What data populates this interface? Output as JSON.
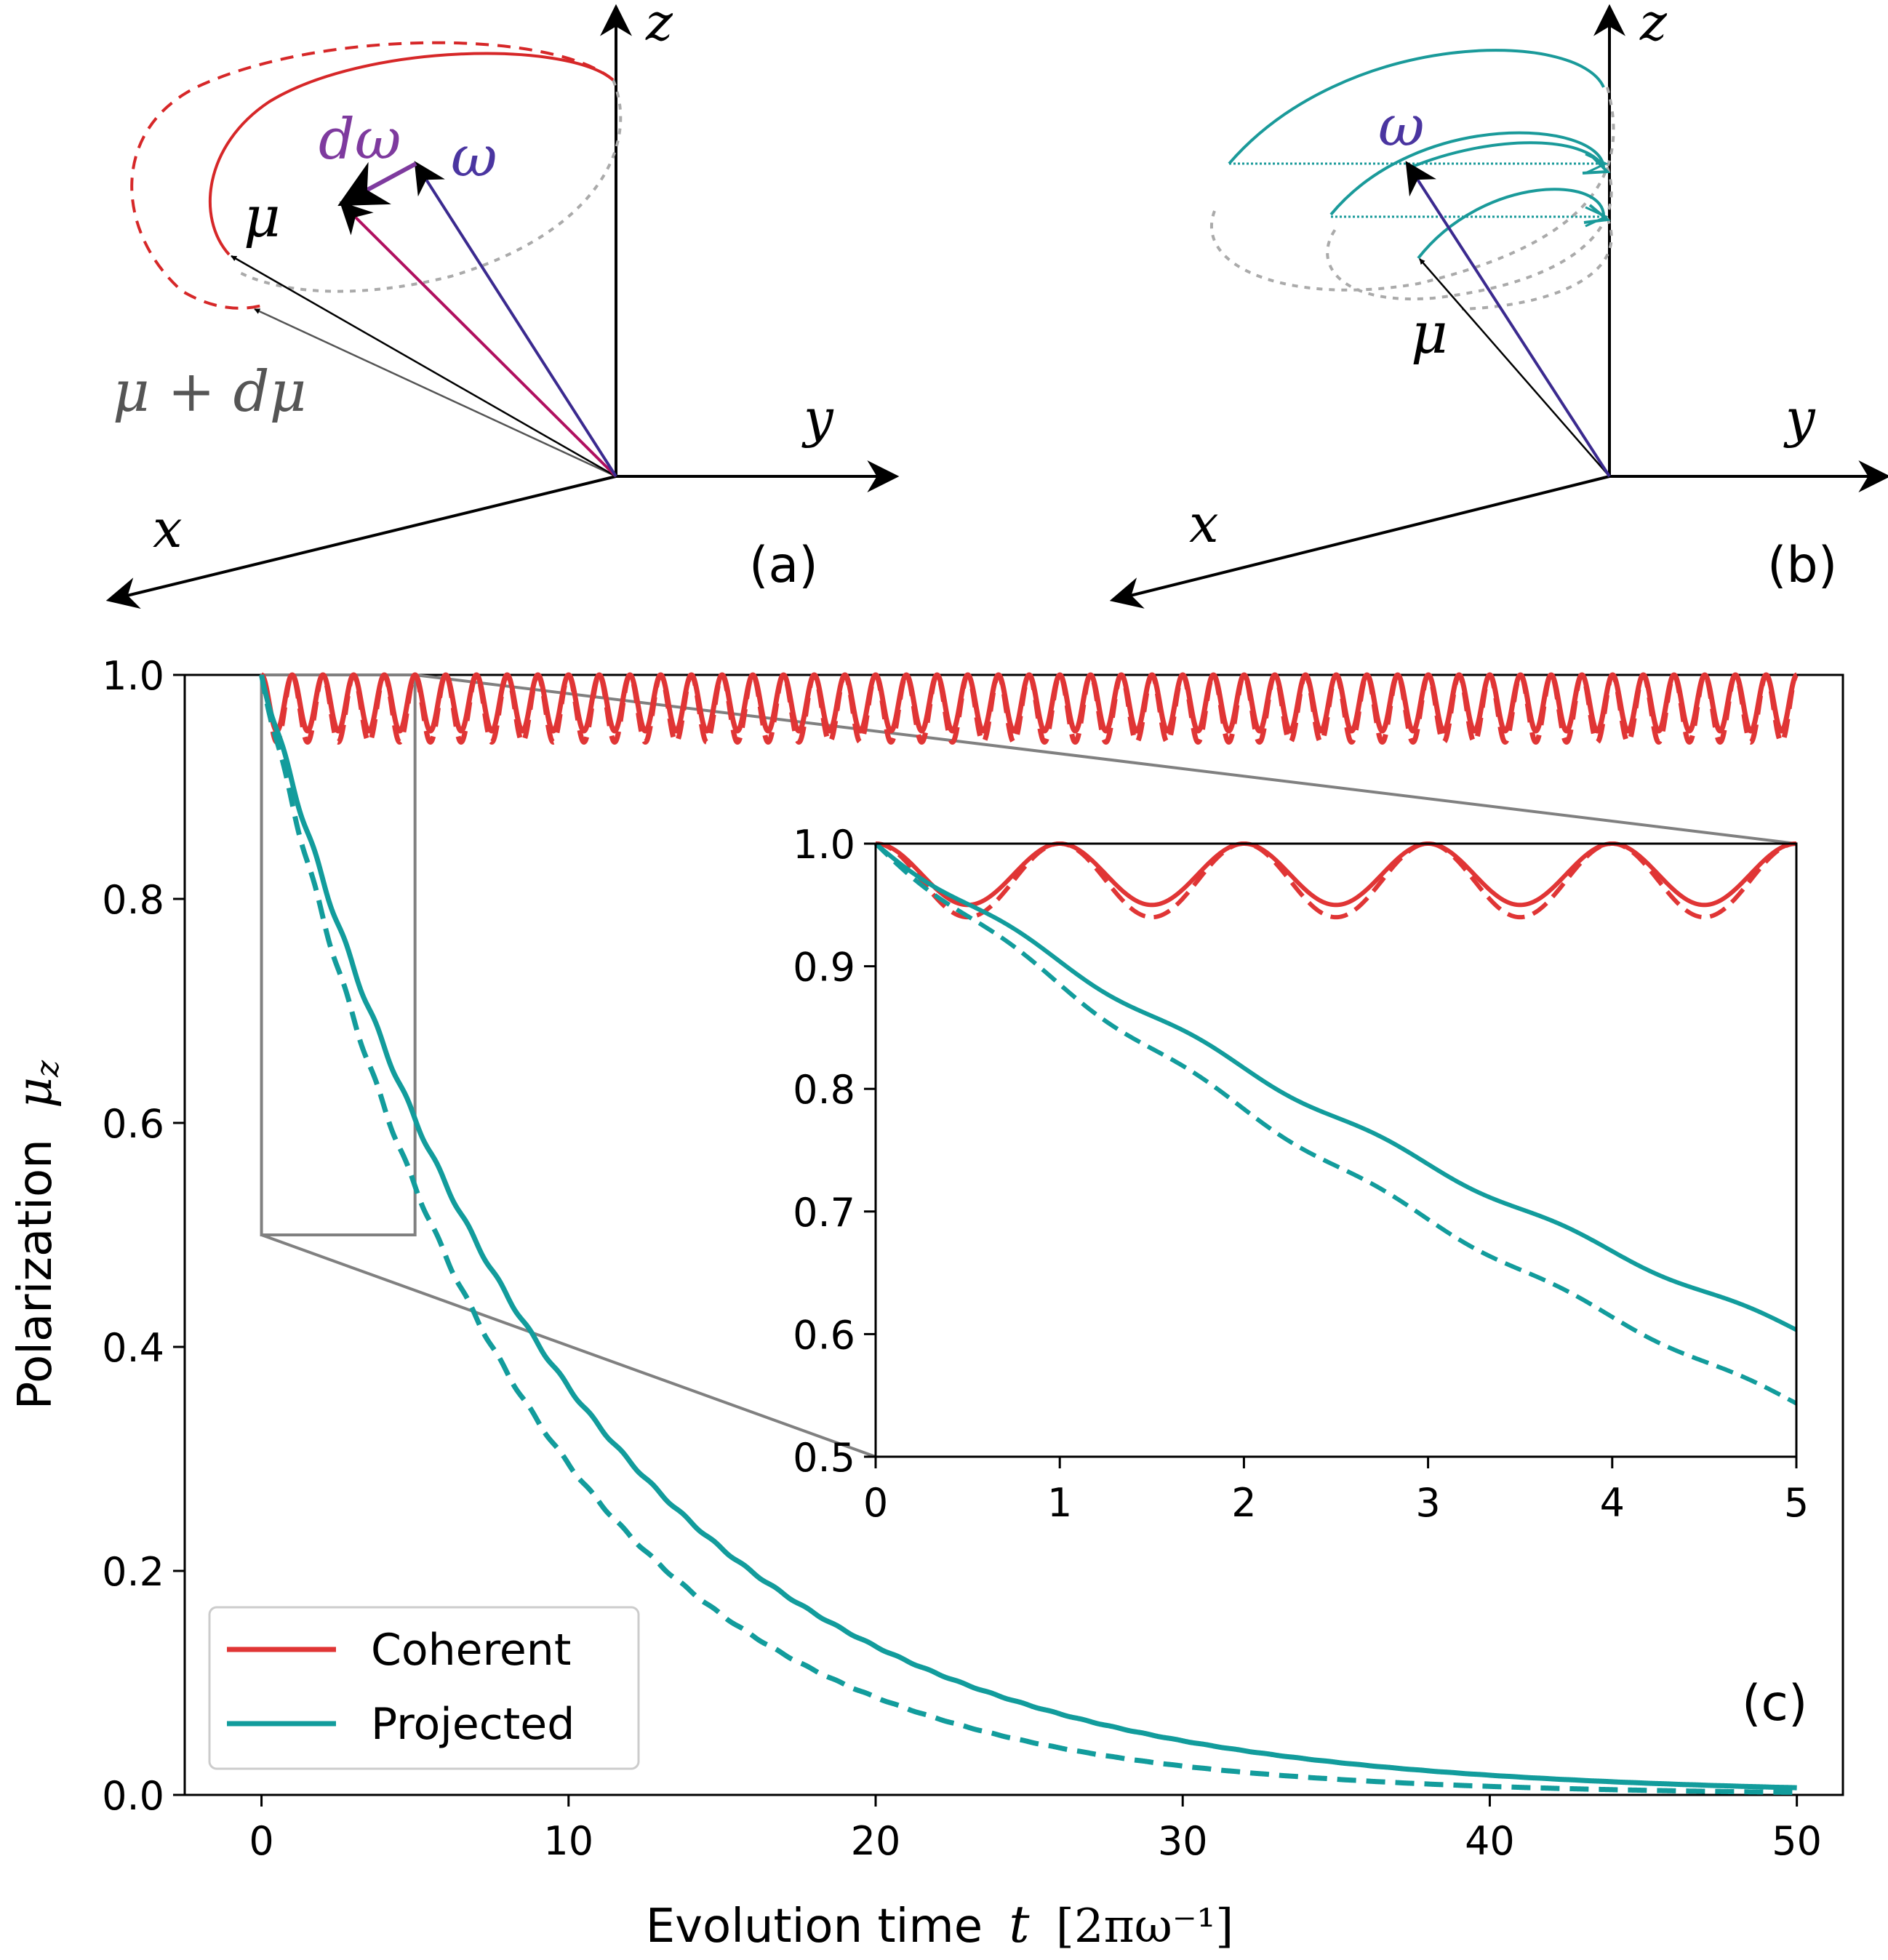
{
  "panels": {
    "a": {
      "label": "(a)",
      "axis_x": "x",
      "axis_y": "y",
      "axis_z": "z",
      "vec_mu": "μ",
      "vec_mu_dmu": "μ + dμ",
      "vec_omega": "ω",
      "vec_domega": "dω",
      "colors": {
        "orbit": "#d62728",
        "omega": "#3b2a8f",
        "domega": "#7e3a9e",
        "new_omega": "#b01060",
        "guide": "#aaaaaa",
        "mu": "#000000",
        "mu_dmu": "#555555"
      }
    },
    "b": {
      "label": "(b)",
      "axis_x": "x",
      "axis_y": "y",
      "axis_z": "z",
      "vec_mu": "μ",
      "vec_omega": "ω",
      "colors": {
        "orbit": "#1a9a9a",
        "omega": "#3b2a8f",
        "guide": "#aaaaaa",
        "mu": "#000000"
      }
    }
  },
  "chart_data": [
    {
      "panel": "(c)",
      "type": "line",
      "xlabel_prefix": "Evolution time",
      "xlabel_var": "t",
      "xlabel_unit": "[2πω⁻¹]",
      "ylabel_prefix": "Polarization",
      "ylabel_var": "μ",
      "ylabel_sub": "z",
      "xlim": [
        -2.5,
        51.5
      ],
      "ylim": [
        0.0,
        1.0
      ],
      "xticks": [
        "0",
        "10",
        "20",
        "30",
        "40",
        "50"
      ],
      "yticks": [
        "0.0",
        "0.2",
        "0.4",
        "0.6",
        "0.8",
        "1.0"
      ],
      "grid": false,
      "legend_position": "lower-left",
      "legend": [
        {
          "name": "Coherent",
          "color": "#e03535"
        },
        {
          "name": "Projected",
          "color": "#129c9c"
        }
      ],
      "series": [
        {
          "legend": "Coherent",
          "style": "solid",
          "model": "oscillation",
          "min": 0.95,
          "max": 1.0,
          "period": 1.0,
          "x_range": [
            0,
            50
          ]
        },
        {
          "legend": "Coherent",
          "style": "dashed",
          "model": "oscillation",
          "min": 0.94,
          "max": 1.0,
          "period": 1.0,
          "x_range": [
            0,
            50
          ]
        },
        {
          "legend": "Projected",
          "style": "solid",
          "model": "damped_wobble",
          "decay_time": 9.9,
          "wobble_amplitude": 0.004,
          "period": 1.0,
          "x_range": [
            0,
            50
          ],
          "values_at": {
            "t": [
              0,
              5,
              10,
              20,
              30,
              40,
              50
            ],
            "mu_z": [
              1.0,
              0.605,
              0.365,
              0.13,
              0.046,
              0.017,
              0.006
            ]
          }
        },
        {
          "legend": "Projected",
          "style": "dashed",
          "model": "damped_wobble",
          "decay_time": 8.2,
          "wobble_amplitude": 0.004,
          "period": 1.0,
          "x_range": [
            0,
            50
          ],
          "values_at": {
            "t": [
              0,
              5,
              10,
              20,
              30,
              40,
              50
            ],
            "mu_z": [
              1.0,
              0.545,
              0.3,
              0.088,
              0.026,
              0.008,
              0.002
            ]
          }
        }
      ],
      "zoom_box": {
        "xlim": [
          0,
          5
        ],
        "ylim": [
          0.5,
          1.0
        ]
      }
    },
    {
      "panel": "(c) inset",
      "type": "line",
      "xlim": [
        0,
        5
      ],
      "ylim": [
        0.5,
        1.0
      ],
      "xticks": [
        "0",
        "1",
        "2",
        "3",
        "4",
        "5"
      ],
      "yticks": [
        "0.5",
        "0.6",
        "0.7",
        "0.8",
        "0.9",
        "1.0"
      ],
      "grid": false,
      "series": [
        {
          "legend": "Coherent",
          "style": "solid",
          "model": "oscillation",
          "min": 0.95,
          "max": 1.0,
          "period": 1.0
        },
        {
          "legend": "Coherent",
          "style": "dashed",
          "model": "oscillation",
          "min": 0.94,
          "max": 1.0,
          "period": 1.0
        },
        {
          "legend": "Projected",
          "style": "solid",
          "model": "damped_wobble",
          "decay_time": 9.9,
          "wobble_amplitude": 0.004,
          "period": 1.0,
          "values_at": {
            "t": [
              0,
              1,
              2,
              3,
              4,
              5
            ],
            "mu_z": [
              1.0,
              0.905,
              0.82,
              0.74,
              0.67,
              0.605
            ]
          }
        },
        {
          "legend": "Projected",
          "style": "dashed",
          "model": "damped_wobble",
          "decay_time": 8.2,
          "wobble_amplitude": 0.004,
          "period": 1.0,
          "values_at": {
            "t": [
              0,
              1,
              2,
              3,
              4,
              5
            ],
            "mu_z": [
              1.0,
              0.885,
              0.785,
              0.695,
              0.615,
              0.545
            ]
          }
        }
      ]
    }
  ]
}
